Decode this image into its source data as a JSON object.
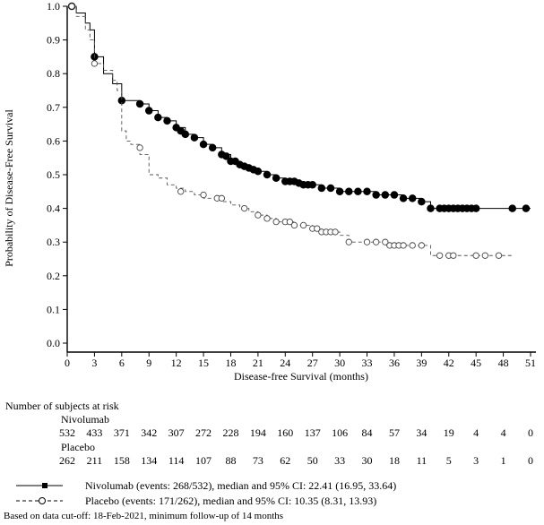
{
  "chart_data": {
    "type": "line",
    "subtype": "kaplan-meier step curve with censor marks",
    "xlabel": "Disease-free Survival (months)",
    "ylabel": "Probability of Disease-Free Survival",
    "xlim": [
      0,
      51
    ],
    "ylim": [
      0.0,
      1.0
    ],
    "xticks": [
      "0",
      "3",
      "6",
      "9",
      "12",
      "15",
      "18",
      "21",
      "24",
      "27",
      "30",
      "33",
      "36",
      "39",
      "42",
      "45",
      "48",
      "51"
    ],
    "yticks": [
      "0.0",
      "0.1",
      "0.2",
      "0.3",
      "0.4",
      "0.5",
      "0.6",
      "0.7",
      "0.8",
      "0.9",
      "1.0"
    ],
    "grid": false,
    "series": [
      {
        "name": "Nivolumab",
        "line_style": "solid",
        "marker": "filled circle",
        "color": "#000000",
        "x": [
          0,
          1,
          2,
          2.5,
          3,
          4,
          5,
          6,
          7,
          8,
          9,
          10,
          11,
          12,
          13,
          14,
          15,
          16,
          17,
          18,
          19,
          20,
          21,
          22,
          23,
          24,
          25,
          26,
          27,
          28,
          29,
          30,
          31,
          32,
          33,
          34,
          35,
          36,
          37,
          38,
          39,
          40,
          41,
          42,
          43,
          44,
          45,
          46,
          47,
          48,
          49,
          50,
          51
        ],
        "y": [
          1.0,
          0.98,
          0.95,
          0.93,
          0.85,
          0.8,
          0.77,
          0.72,
          0.72,
          0.71,
          0.69,
          0.67,
          0.66,
          0.64,
          0.62,
          0.61,
          0.59,
          0.58,
          0.56,
          0.54,
          0.53,
          0.52,
          0.51,
          0.5,
          0.49,
          0.48,
          0.48,
          0.47,
          0.47,
          0.46,
          0.46,
          0.45,
          0.45,
          0.45,
          0.45,
          0.44,
          0.44,
          0.44,
          0.43,
          0.43,
          0.42,
          0.4,
          0.4,
          0.4,
          0.4,
          0.4,
          0.4,
          0.4,
          0.4,
          0.4,
          0.4,
          0.4,
          0.4
        ],
        "censored_x": [
          0.5,
          3,
          6,
          8,
          9,
          10,
          11,
          12,
          12.5,
          13,
          14,
          15,
          16,
          17,
          17.5,
          18,
          18.5,
          19,
          19.5,
          20,
          20.5,
          21,
          22,
          23,
          24,
          24.5,
          25,
          25.5,
          26,
          26.5,
          27,
          28,
          29,
          30,
          31,
          32,
          33,
          34,
          35,
          36,
          37,
          38,
          39,
          40,
          41,
          41.5,
          42,
          42.5,
          43,
          43.5,
          44,
          44.5,
          45,
          49,
          50.5
        ],
        "censored_y": [
          1.0,
          0.85,
          0.72,
          0.71,
          0.69,
          0.67,
          0.66,
          0.64,
          0.63,
          0.62,
          0.61,
          0.59,
          0.58,
          0.56,
          0.555,
          0.54,
          0.54,
          0.53,
          0.525,
          0.52,
          0.515,
          0.51,
          0.5,
          0.49,
          0.48,
          0.48,
          0.48,
          0.475,
          0.47,
          0.47,
          0.47,
          0.46,
          0.46,
          0.45,
          0.45,
          0.45,
          0.45,
          0.44,
          0.44,
          0.44,
          0.43,
          0.43,
          0.42,
          0.4,
          0.4,
          0.4,
          0.4,
          0.4,
          0.4,
          0.4,
          0.4,
          0.4,
          0.4,
          0.4,
          0.4
        ]
      },
      {
        "name": "Placebo",
        "line_style": "dashed",
        "marker": "open circle",
        "color": "#555555",
        "x": [
          0,
          1,
          2,
          2.5,
          3,
          4,
          5,
          5.5,
          6,
          6.5,
          7,
          8,
          9,
          10,
          11,
          12,
          13,
          14,
          15,
          16,
          17,
          18,
          19,
          20,
          21,
          22,
          23,
          24,
          25,
          26,
          27,
          28,
          29,
          30,
          31,
          32,
          33,
          34,
          35,
          36,
          37,
          38,
          39,
          40,
          41,
          42,
          43,
          44,
          45,
          46,
          47,
          48,
          49
        ],
        "y": [
          1.0,
          0.97,
          0.93,
          0.9,
          0.83,
          0.81,
          0.78,
          0.75,
          0.63,
          0.6,
          0.59,
          0.56,
          0.5,
          0.49,
          0.47,
          0.46,
          0.45,
          0.44,
          0.43,
          0.43,
          0.42,
          0.41,
          0.4,
          0.39,
          0.38,
          0.37,
          0.36,
          0.36,
          0.35,
          0.35,
          0.34,
          0.33,
          0.33,
          0.32,
          0.3,
          0.3,
          0.3,
          0.3,
          0.29,
          0.29,
          0.29,
          0.29,
          0.29,
          0.26,
          0.26,
          0.26,
          0.26,
          0.26,
          0.26,
          0.26,
          0.26,
          0.26,
          0.26
        ],
        "censored_x": [
          0.5,
          3,
          8,
          12.5,
          15,
          16.5,
          17,
          19.5,
          21,
          22,
          23,
          24,
          24.5,
          25,
          26,
          27,
          27.5,
          28,
          28.5,
          29,
          29.5,
          31,
          33,
          34,
          35,
          35.5,
          36,
          36.5,
          37,
          38,
          39,
          41,
          42,
          42.5,
          45,
          46,
          47.5
        ],
        "censored_y": [
          1.0,
          0.83,
          0.58,
          0.45,
          0.44,
          0.43,
          0.43,
          0.4,
          0.38,
          0.37,
          0.36,
          0.36,
          0.36,
          0.35,
          0.35,
          0.34,
          0.34,
          0.33,
          0.33,
          0.33,
          0.33,
          0.3,
          0.3,
          0.3,
          0.3,
          0.29,
          0.29,
          0.29,
          0.29,
          0.29,
          0.29,
          0.26,
          0.26,
          0.26,
          0.26,
          0.26,
          0.26
        ]
      }
    ]
  },
  "risk_table": {
    "title": "Number of subjects at risk",
    "groups": [
      {
        "name": "Nivolumab",
        "values": [
          "532",
          "433",
          "371",
          "342",
          "307",
          "272",
          "228",
          "194",
          "160",
          "137",
          "106",
          "84",
          "57",
          "34",
          "19",
          "4",
          "4",
          "0"
        ]
      },
      {
        "name": "Placebo",
        "values": [
          "262",
          "211",
          "158",
          "134",
          "114",
          "107",
          "88",
          "73",
          "62",
          "50",
          "33",
          "30",
          "18",
          "11",
          "5",
          "3",
          "1",
          "0"
        ]
      }
    ]
  },
  "legend": [
    {
      "text": "Nivolumab (events: 268/532), median and 95% CI: 22.41 (16.95, 33.64)",
      "style": "solid",
      "marker": "filled square"
    },
    {
      "text": "Placebo (events: 171/262), median and 95% CI: 10.35 (8.31, 13.93)",
      "style": "dashed",
      "marker": "open circle"
    }
  ],
  "footnote": "Based on data cut-off: 18-Feb-2021, minimum follow-up of 14 months"
}
